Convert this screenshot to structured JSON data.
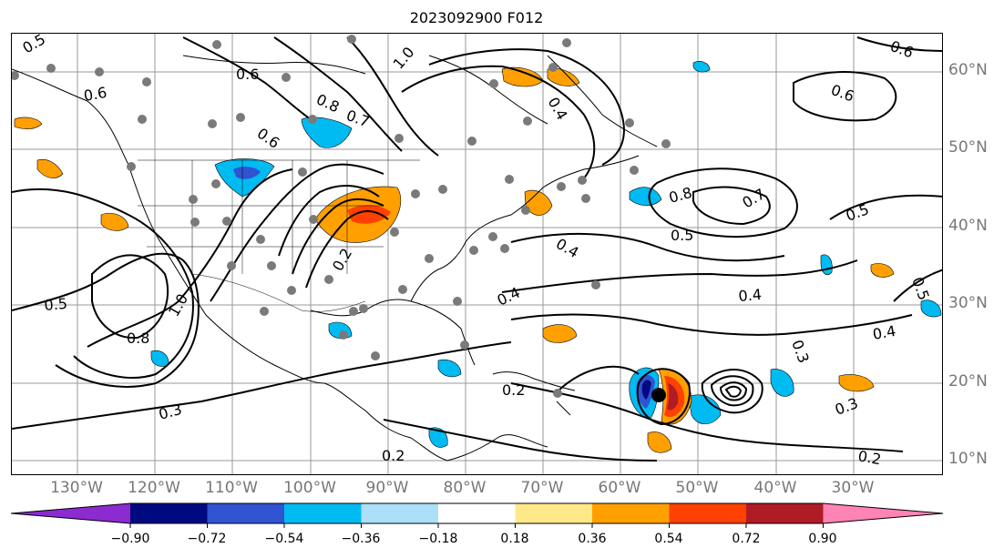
{
  "title": "2023092900 F012",
  "lat_labels": [
    "60°N",
    "50°N",
    "40°N",
    "30°N",
    "20°N",
    "10°N"
  ],
  "lon_labels": [
    "130°W",
    "120°W",
    "110°W",
    "100°W",
    "90°W",
    "80°W",
    "70°W",
    "60°W",
    "50°W",
    "40°W",
    "30°W"
  ],
  "contour_labels": [
    "0.5",
    "0.6",
    "0.6",
    "0.6",
    "1.0",
    "0.8",
    "0.7",
    "0.4",
    "0.6",
    "0.8",
    "0.6",
    "0.5",
    "0.7",
    "0.4",
    "0.5",
    "0.4",
    "0.5",
    "0.8",
    "1.0",
    "0.5",
    "0.4",
    "0.3",
    "0.4",
    "0.2",
    "0.2",
    "0.2",
    "0.3",
    "0.3",
    "0.2"
  ],
  "colorbar": {
    "ticks": [
      "−0.90",
      "−0.72",
      "−0.54",
      "−0.36",
      "−0.18",
      "0.18",
      "0.36",
      "0.54",
      "0.72",
      "0.90"
    ],
    "colors": [
      "#8b2bd0",
      "#000a80",
      "#2f53d1",
      "#00bbf2",
      "#acdff8",
      "#ffffff",
      "#ffe88a",
      "#ffa000",
      "#ff4000",
      "#b01c25",
      "#ff84b5"
    ]
  }
}
